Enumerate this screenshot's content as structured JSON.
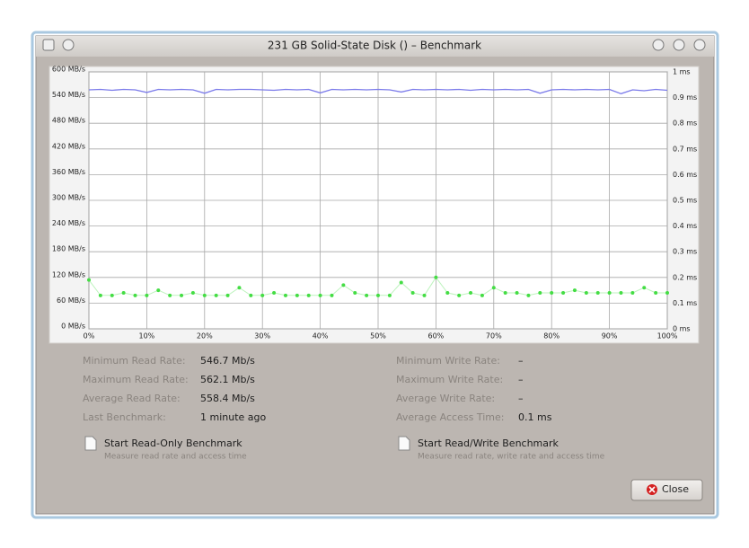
{
  "window": {
    "title": "231 GB Solid-State Disk () – Benchmark"
  },
  "chart_data": {
    "type": "line",
    "x": [
      0,
      2,
      4,
      6,
      8,
      10,
      12,
      14,
      16,
      18,
      20,
      22,
      24,
      26,
      28,
      30,
      32,
      34,
      36,
      38,
      40,
      42,
      44,
      46,
      48,
      50,
      52,
      54,
      56,
      58,
      60,
      62,
      64,
      66,
      68,
      70,
      72,
      74,
      76,
      78,
      80,
      82,
      84,
      86,
      88,
      90,
      92,
      94,
      96,
      98,
      100
    ],
    "xlim": [
      0,
      100
    ],
    "xticks": [
      {
        "value": 0,
        "label": "0%"
      },
      {
        "value": 10,
        "label": "10%"
      },
      {
        "value": 20,
        "label": "20%"
      },
      {
        "value": 30,
        "label": "30%"
      },
      {
        "value": 40,
        "label": "40%"
      },
      {
        "value": 50,
        "label": "50%"
      },
      {
        "value": 60,
        "label": "60%"
      },
      {
        "value": 70,
        "label": "70%"
      },
      {
        "value": 80,
        "label": "80%"
      },
      {
        "value": 90,
        "label": "90%"
      },
      {
        "value": 100,
        "label": "100%"
      }
    ],
    "ylim": [
      0,
      600
    ],
    "yticks": [
      {
        "value": 0,
        "label": "0 MB/s"
      },
      {
        "value": 60,
        "label": "60 MB/s"
      },
      {
        "value": 120,
        "label": "120 MB/s"
      },
      {
        "value": 180,
        "label": "180 MB/s"
      },
      {
        "value": 240,
        "label": "240 MB/s"
      },
      {
        "value": 300,
        "label": "300 MB/s"
      },
      {
        "value": 360,
        "label": "360 MB/s"
      },
      {
        "value": 420,
        "label": "420 MB/s"
      },
      {
        "value": 480,
        "label": "480 MB/s"
      },
      {
        "value": 540,
        "label": "540 MB/s"
      },
      {
        "value": 600,
        "label": "600 MB/s"
      }
    ],
    "y2lim": [
      0,
      1
    ],
    "y2ticks": [
      {
        "value": 0,
        "label": "0 ms"
      },
      {
        "value": 0.1,
        "label": "0.1 ms"
      },
      {
        "value": 0.2,
        "label": "0.2 ms"
      },
      {
        "value": 0.3,
        "label": "0.3 ms"
      },
      {
        "value": 0.4,
        "label": "0.4 ms"
      },
      {
        "value": 0.5,
        "label": "0.5 ms"
      },
      {
        "value": 0.6,
        "label": "0.6 ms"
      },
      {
        "value": 0.7,
        "label": "0.7 ms"
      },
      {
        "value": 0.8,
        "label": "0.8 ms"
      },
      {
        "value": 0.9,
        "label": "0.9 ms"
      },
      {
        "value": 1,
        "label": "1 ms"
      }
    ],
    "grid": true,
    "series": [
      {
        "color": "#7b7bea",
        "mode": "line",
        "values": [
          558,
          559,
          557,
          559,
          558,
          552,
          559,
          558,
          559,
          558,
          550,
          559,
          558,
          559,
          559,
          558,
          557,
          559,
          558,
          559,
          551,
          559,
          558,
          559,
          558,
          559,
          558,
          553,
          559,
          558,
          559,
          558,
          559,
          557,
          559,
          558,
          559,
          558,
          559,
          550,
          558,
          559,
          558,
          559,
          558,
          559,
          549,
          558,
          556,
          559,
          557
        ]
      },
      {
        "color": "#44dd44",
        "mode": "markers",
        "axis": "y2",
        "values": [
          0.19,
          0.13,
          0.13,
          0.14,
          0.13,
          0.13,
          0.15,
          0.13,
          0.13,
          0.14,
          0.13,
          0.13,
          0.13,
          0.16,
          0.13,
          0.13,
          0.14,
          0.13,
          0.13,
          0.13,
          0.13,
          0.13,
          0.17,
          0.14,
          0.13,
          0.13,
          0.13,
          0.18,
          0.14,
          0.13,
          0.2,
          0.14,
          0.13,
          0.14,
          0.13,
          0.16,
          0.14,
          0.14,
          0.13,
          0.14,
          0.14,
          0.14,
          0.15,
          0.14,
          0.14,
          0.14,
          0.14,
          0.14,
          0.16,
          0.14,
          0.14
        ]
      }
    ]
  },
  "stats": {
    "left": [
      {
        "label": "Minimum Read Rate:",
        "value": "546.7 Mb/s"
      },
      {
        "label": "Maximum Read Rate:",
        "value": "562.1 Mb/s"
      },
      {
        "label": "Average Read Rate:",
        "value": "558.4 Mb/s"
      },
      {
        "label": "Last Benchmark:",
        "value": "1 minute ago"
      }
    ],
    "right": [
      {
        "label": "Minimum Write Rate:",
        "value": "–"
      },
      {
        "label": "Maximum Write Rate:",
        "value": "–"
      },
      {
        "label": "Average Write Rate:",
        "value": "–"
      },
      {
        "label": "Average Access Time:",
        "value": "0.1 ms"
      }
    ]
  },
  "benchmarks": [
    {
      "label": "Start Read-Only Benchmark",
      "description": "Measure read rate and access time"
    },
    {
      "label": "Start Read/Write Benchmark",
      "description": "Measure read rate, write rate and access time"
    }
  ],
  "close_button": "Close"
}
